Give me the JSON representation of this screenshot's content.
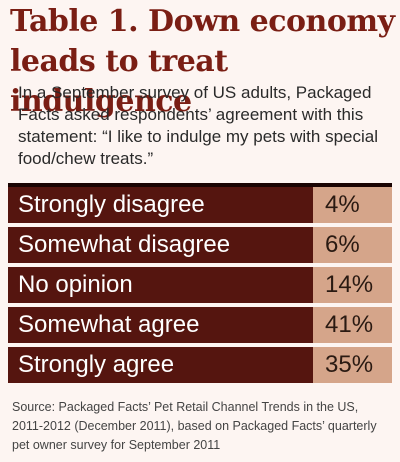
{
  "title": "Table 1. Down economy leads to treat indulgence",
  "intro": "In a September survey of US adults, Packaged Facts asked respondents’ agreement with this statement: “I like to indulge my pets with special food/chew treats.”",
  "source": "Source: Packaged Facts’ Pet Retail Channel Trends in the US, 2011-2012 (December 2011), based on Packaged Facts’ quarterly pet owner survey for September 2011",
  "colors": {
    "title": "#7a1e14",
    "label_bg": "#55150f",
    "value_bg": "#d5a58a"
  },
  "chart_data": {
    "type": "table",
    "title": "Table 1. Down economy leads to treat indulgence",
    "rows": [
      {
        "label": "Strongly disagree",
        "value": "4%"
      },
      {
        "label": "Somewhat disagree",
        "value": "6%"
      },
      {
        "label": "No opinion",
        "value": "14%"
      },
      {
        "label": "Somewhat agree",
        "value": "41%"
      },
      {
        "label": "Strongly agree",
        "value": "35%"
      }
    ]
  }
}
